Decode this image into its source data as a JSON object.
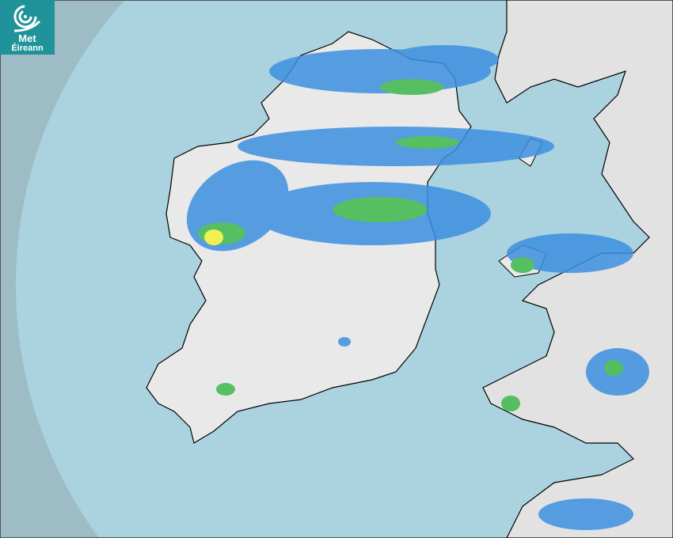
{
  "logo": {
    "line1": "Met",
    "line2": "Éireann",
    "color": "#1f9399"
  },
  "map": {
    "type": "precipitation-radar",
    "colors": {
      "outside_range": "#9dbcc6",
      "sea": "#aad3df",
      "land": "#e9e9e9",
      "coast": "#000000",
      "rain_light": "#3d8fe0",
      "rain_moderate": "#3cb84a",
      "rain_heavy": "#f2f23a"
    }
  }
}
